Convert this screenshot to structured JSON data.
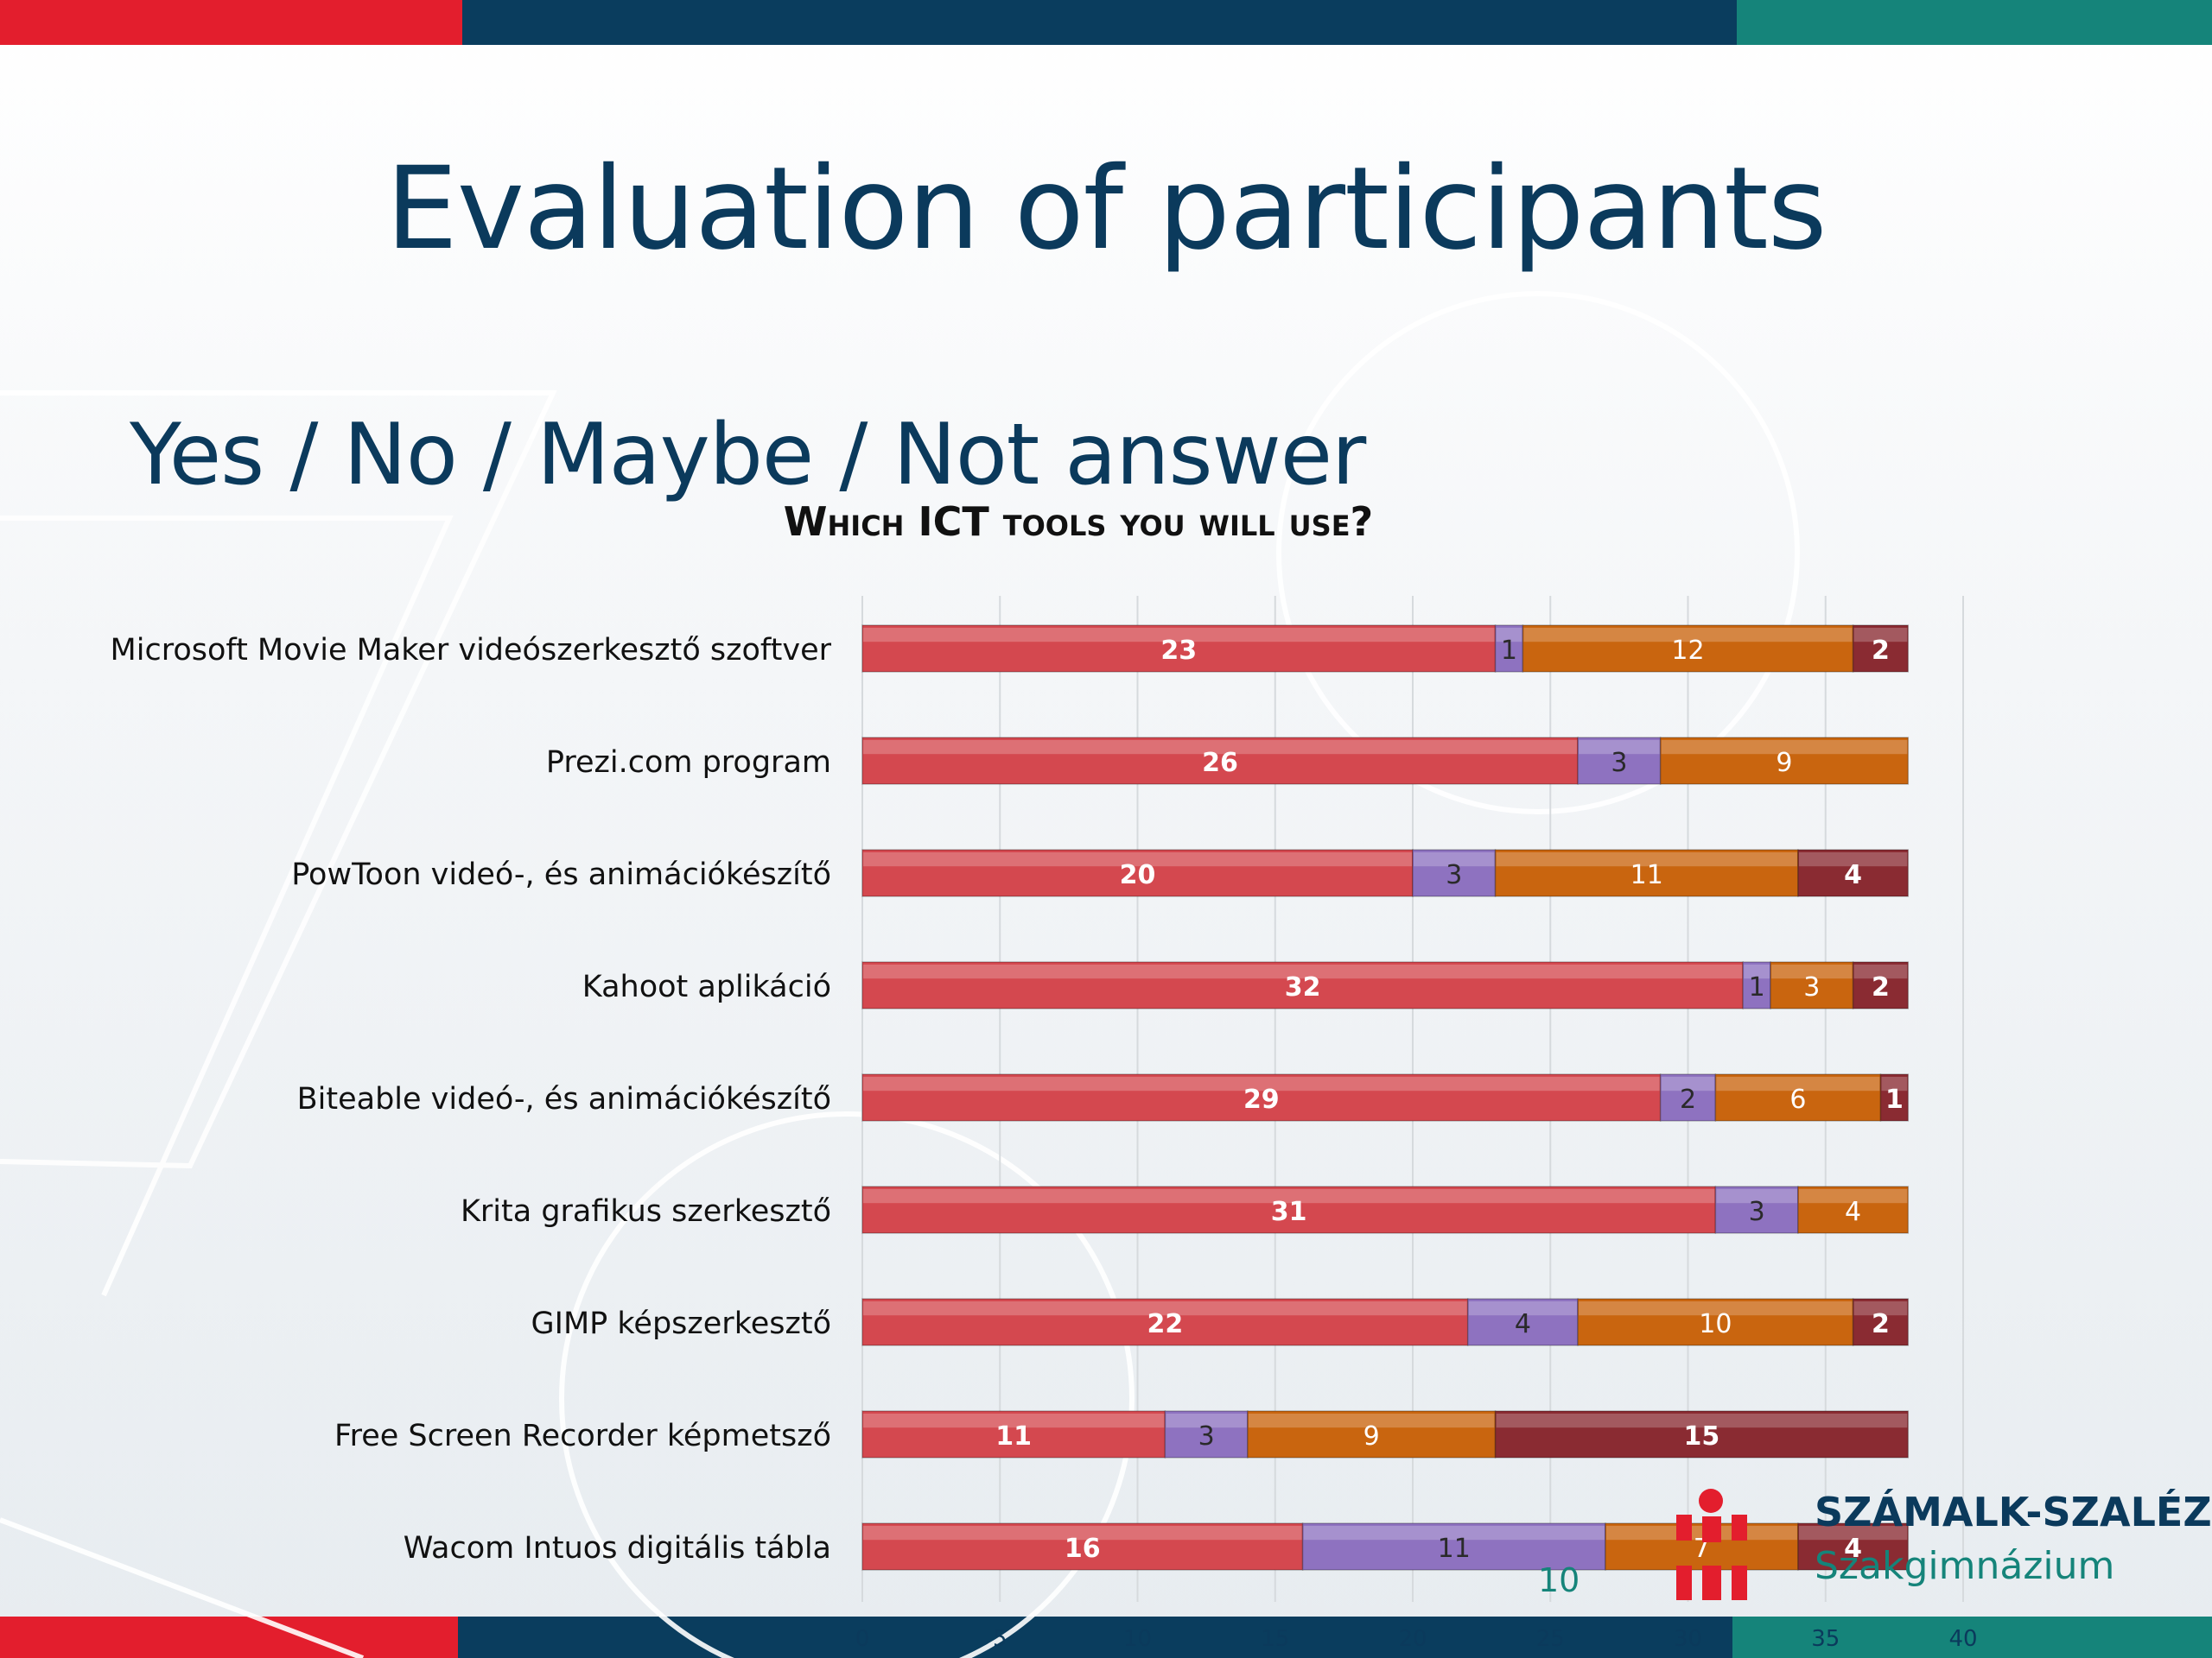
{
  "slide": {
    "title": "Evaluation of participants",
    "subtitle": "Yes / No / Maybe / Not answer",
    "page_number": "10"
  },
  "logo": {
    "title": "SZÁMALK-SZALÉZI",
    "subtitle": "Szakgimnázium"
  },
  "colors": {
    "yes": "#d4484f",
    "no": "#8e72c0",
    "maybe": "#c9650f",
    "not_answer": "#8a2b32",
    "red": "#e31e2d",
    "navy": "#0a3d5e",
    "teal": "#15847a",
    "title": "#0b3a5c"
  },
  "chart_data": {
    "type": "bar",
    "orientation": "horizontal",
    "stacked": true,
    "title": "Which ICT tools you will use?",
    "categories": [
      "Microsoft Movie Maker videószerkesztő szoftver",
      "Prezi.com program",
      "PowToon videó-, és animációkészítő",
      "Kahoot aplikáció",
      "Biteable videó-, és animációkészítő",
      "Krita grafikus szerkesztő",
      "GIMP képszerkesztő",
      "Free Screen Recorder képmetsző",
      "Wacom Intuos digitális tábla"
    ],
    "series": [
      {
        "values": [
          23,
          26,
          20,
          32,
          29,
          31,
          22,
          11,
          16
        ]
      },
      {
        "values": [
          1,
          3,
          3,
          1,
          2,
          3,
          4,
          3,
          11
        ]
      },
      {
        "values": [
          12,
          9,
          11,
          3,
          6,
          4,
          10,
          9,
          7
        ]
      },
      {
        "values": [
          2,
          0,
          4,
          2,
          1,
          0,
          2,
          15,
          4
        ]
      }
    ],
    "xlim": [
      0,
      40
    ],
    "xticks": [
      "0",
      "5",
      "10",
      "15",
      "20",
      "25",
      "30",
      "35",
      "40"
    ],
    "grid": true,
    "legend": "none"
  }
}
